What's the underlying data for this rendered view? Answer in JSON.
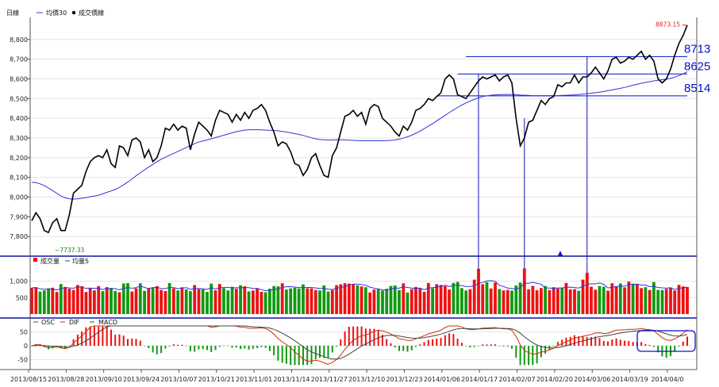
{
  "chart_data": [
    {
      "type": "line",
      "title": "日線",
      "legend": [
        {
          "name": "均價30",
          "color": "#3333dd",
          "symbol": "line"
        },
        {
          "name": "成交價線",
          "color": "#000000",
          "symbol": "dot"
        }
      ],
      "ylim": [
        7720,
        8900
      ],
      "yticks": [
        "7,800",
        "7,900",
        "8,000",
        "8,100",
        "8,200",
        "8,300",
        "8,400",
        "8,500",
        "8,600",
        "8,700",
        "8,800"
      ],
      "ytick_values": [
        7800,
        7900,
        8000,
        8100,
        8200,
        8300,
        8400,
        8500,
        8600,
        8700,
        8800
      ],
      "x_count": 158,
      "series": [
        {
          "name": "成交價線",
          "color": "#000000",
          "values": [
            7880,
            7920,
            7890,
            7830,
            7820,
            7870,
            7890,
            7830,
            7830,
            7910,
            8020,
            8040,
            8060,
            8130,
            8180,
            8200,
            8210,
            8200,
            8240,
            8170,
            8150,
            8260,
            8250,
            8210,
            8290,
            8300,
            8280,
            8200,
            8240,
            8180,
            8200,
            8260,
            8350,
            8340,
            8370,
            8340,
            8360,
            8350,
            8240,
            8320,
            8380,
            8360,
            8340,
            8310,
            8390,
            8440,
            8430,
            8420,
            8380,
            8420,
            8390,
            8430,
            8400,
            8440,
            8450,
            8470,
            8440,
            8380,
            8330,
            8260,
            8280,
            8270,
            8230,
            8170,
            8160,
            8110,
            8140,
            8200,
            8220,
            8160,
            8110,
            8100,
            8210,
            8250,
            8330,
            8410,
            8420,
            8440,
            8410,
            8430,
            8370,
            8450,
            8470,
            8460,
            8400,
            8380,
            8360,
            8330,
            8310,
            8360,
            8340,
            8380,
            8440,
            8450,
            8470,
            8500,
            8490,
            8510,
            8530,
            8600,
            8620,
            8600,
            8520,
            8510,
            8500,
            8530,
            8560,
            8590,
            8610,
            8600,
            8610,
            8620,
            8590,
            8610,
            8620,
            8580,
            8400,
            8260,
            8300,
            8380,
            8390,
            8440,
            8490,
            8470,
            8500,
            8510,
            8570,
            8560,
            8580,
            8580,
            8620,
            8580,
            8610,
            8610,
            8630,
            8660,
            8630,
            8600,
            8640,
            8700,
            8710,
            8680,
            8690,
            8710,
            8700,
            8720,
            8740,
            8700,
            8720,
            8690,
            8600,
            8580,
            8600,
            8650,
            8720,
            8780,
            8820,
            8873
          ]
        },
        {
          "name": "均價30",
          "color": "#3333dd",
          "values": [
            8075,
            8073,
            8067,
            8058,
            8046,
            8033,
            8019,
            8005,
            7996,
            7991,
            7990,
            7991,
            7994,
            7997,
            8002,
            8005,
            8009,
            8016,
            8024,
            8031,
            8038,
            8049,
            8062,
            8076,
            8092,
            8108,
            8123,
            8138,
            8152,
            8166,
            8180,
            8192,
            8202,
            8212,
            8222,
            8232,
            8242,
            8251,
            8261,
            8271,
            8279,
            8285,
            8290,
            8296,
            8302,
            8308,
            8314,
            8320,
            8326,
            8332,
            8336,
            8340,
            8342,
            8342,
            8342,
            8341,
            8340,
            8339,
            8338,
            8336,
            8333,
            8330,
            8326,
            8322,
            8318,
            8313,
            8307,
            8301,
            8296,
            8292,
            8291,
            8290,
            8290,
            8291,
            8291,
            8290,
            8289,
            8288,
            8287,
            8286,
            8286,
            8286,
            8286,
            8286,
            8286,
            8287,
            8288,
            8290,
            8294,
            8299,
            8306,
            8314,
            8324,
            8335,
            8347,
            8360,
            8373,
            8387,
            8401,
            8415,
            8429,
            8442,
            8455,
            8467,
            8478,
            8487,
            8496,
            8504,
            8510,
            8514,
            8517,
            8519,
            8520,
            8521,
            8521,
            8521,
            8520,
            8518,
            8517,
            8516,
            8515,
            8515,
            8515,
            8515,
            8515,
            8515,
            8515,
            8516,
            8517,
            8518,
            8519,
            8521,
            8523,
            8525,
            8527,
            8530,
            8533,
            8536,
            8540,
            8544,
            8548,
            8552,
            8557,
            8562,
            8568,
            8573,
            8578,
            8582,
            8586,
            8590,
            8593,
            8596,
            8599,
            8603,
            8609,
            8617,
            8626,
            8636
          ]
        }
      ],
      "annotations": {
        "max_label": "8873.15",
        "min_label": "7737.33",
        "levels": [
          {
            "label": "8713",
            "value": 8713
          },
          {
            "label": "8625",
            "value": 8625
          },
          {
            "label": "8514",
            "value": 8514
          }
        ]
      },
      "grid": true
    },
    {
      "type": "bar",
      "legend": [
        {
          "name": "成交量",
          "color": "#ff0000",
          "symbol": "square"
        },
        {
          "name": "均量5",
          "color": "#3333dd",
          "symbol": "line"
        }
      ],
      "ylim": [
        0,
        1450
      ],
      "yticks": [
        "500",
        "1,000"
      ],
      "ytick_values": [
        500,
        1000
      ],
      "marker": "▲",
      "up_color": "#ee1111",
      "down_color": "#119911",
      "grid": true
    },
    {
      "type": "bar",
      "legend": [
        {
          "name": "OSC",
          "color": "#009900"
        },
        {
          "name": "DIF",
          "color": "#cc3300"
        },
        {
          "name": "MACD",
          "color": "#444444"
        }
      ],
      "ylim": [
        -75,
        75
      ],
      "yticks": [
        "-50",
        "0",
        "50"
      ],
      "ytick_values": [
        -50,
        0,
        50
      ],
      "grid": true
    }
  ],
  "x_axis": {
    "labels": [
      "2013/08/15",
      "2013/08/28",
      "2013/09/10",
      "2013/09/24",
      "2013/10/07",
      "2013/10/21",
      "2013/11/01",
      "2013/11/14",
      "2013/11/27",
      "2013/12/10",
      "2013/12/23",
      "2014/01/06",
      "2014/01/17",
      "2014/02/07",
      "2014/02/20",
      "2014/03/06",
      "2014/03/19",
      "2014/04/0"
    ],
    "label_index": [
      0,
      9,
      18,
      27,
      36,
      45,
      54,
      63,
      72,
      81,
      90,
      99,
      108,
      117,
      126,
      135,
      144,
      153
    ]
  }
}
